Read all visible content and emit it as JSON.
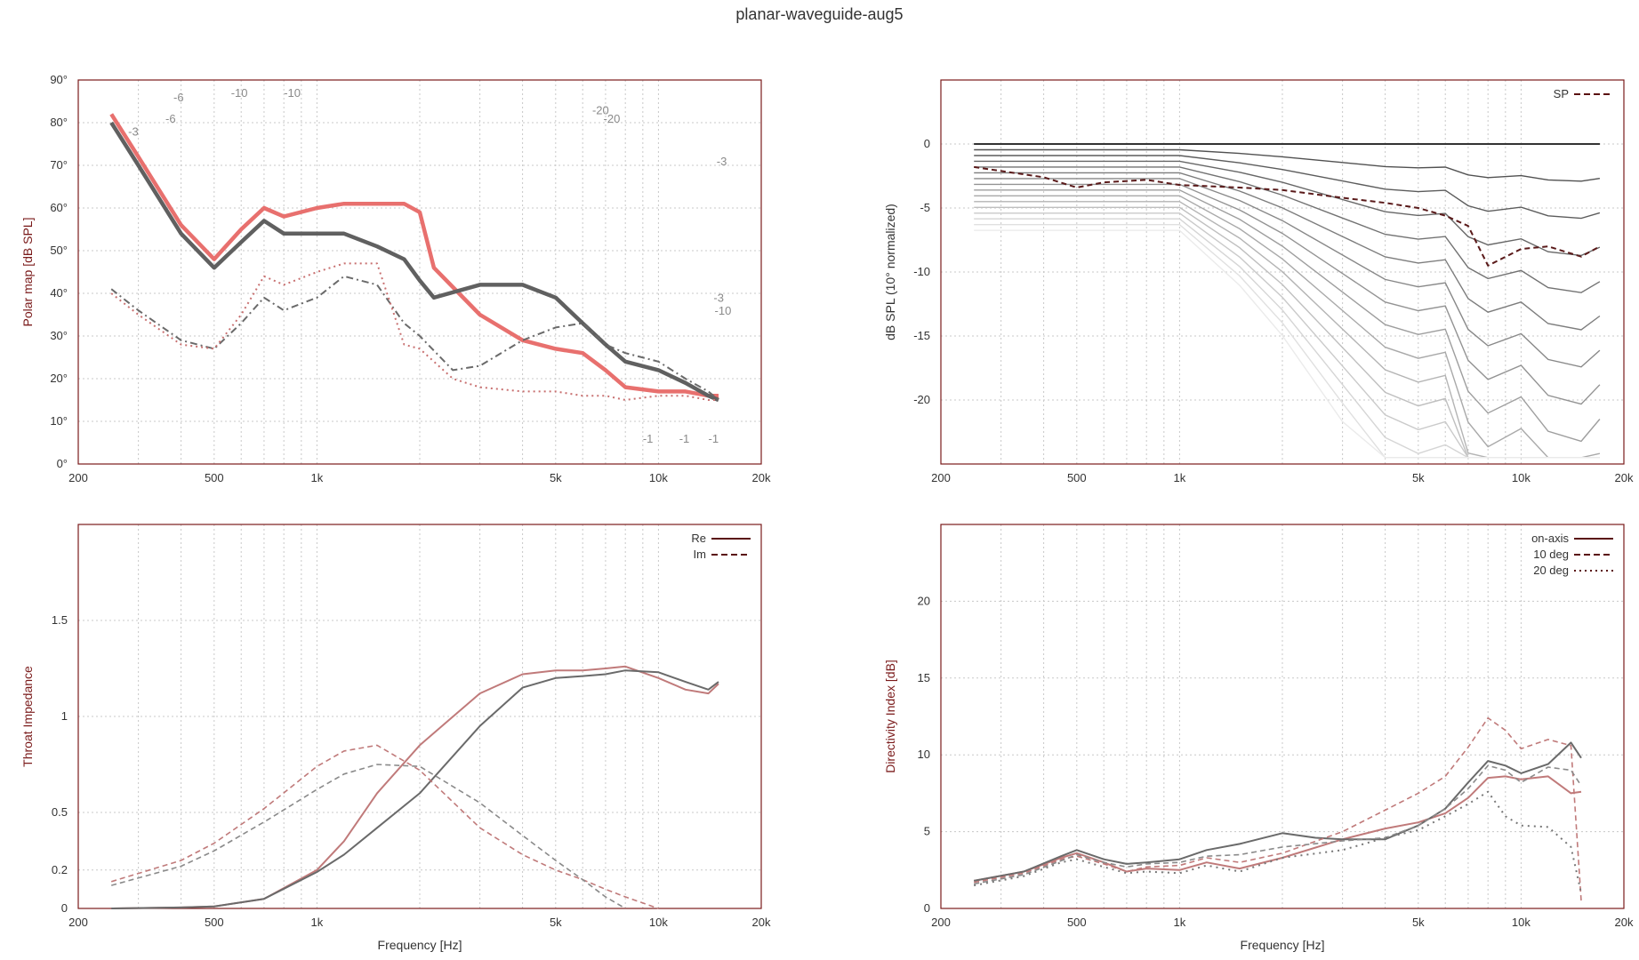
{
  "title": "planar-waveguide-aug5",
  "colors": {
    "frame": "#7a1a1a",
    "grid": "#c8c8c8",
    "red": "#e8706e",
    "redDark": "#b46c6c",
    "gray": "#5a5a5a",
    "legendLine": "#5a1010"
  },
  "chart_data": [
    {
      "type": "line",
      "name": "polar-map",
      "ylabel": "Polar map [dB SPL]",
      "xlabel": "",
      "xscale": "log",
      "xlim": [
        200,
        20000
      ],
      "ylim": [
        0,
        90
      ],
      "xticks": [
        200,
        500,
        1000,
        5000,
        10000,
        20000
      ],
      "xticklabels": [
        "200",
        "500",
        "1k",
        "5k",
        "10k",
        "20k"
      ],
      "yticks": [
        0,
        10,
        20,
        30,
        40,
        50,
        60,
        70,
        80,
        90
      ],
      "yticklabels": [
        "0°",
        "10°",
        "20°",
        "30°",
        "40°",
        "50°",
        "60°",
        "70°",
        "80°",
        "90°"
      ],
      "grid": true,
      "annotations": [
        "-3",
        "-6",
        "-6",
        "-10",
        "-10",
        "-20",
        "-20",
        "-3",
        "-3",
        "-10",
        "-1",
        "-1",
        "-1"
      ],
      "series": [
        {
          "style": "solid-thick-red",
          "x": [
            250,
            300,
            400,
            500,
            600,
            700,
            800,
            1000,
            1200,
            1500,
            1800,
            2000,
            2200,
            3000,
            4000,
            5000,
            6000,
            7000,
            8000,
            10000,
            12000,
            14000,
            15000
          ],
          "y": [
            82,
            72,
            56,
            48,
            55,
            60,
            58,
            60,
            61,
            61,
            61,
            59,
            46,
            35,
            29,
            27,
            26,
            22,
            18,
            17,
            17,
            16,
            16
          ]
        },
        {
          "style": "solid-thick-gray",
          "x": [
            250,
            300,
            400,
            500,
            600,
            700,
            800,
            1000,
            1200,
            1500,
            1800,
            2000,
            2200,
            3000,
            4000,
            5000,
            6000,
            7000,
            8000,
            10000,
            12000,
            14000,
            15000
          ],
          "y": [
            80,
            70,
            54,
            46,
            52,
            57,
            54,
            54,
            54,
            51,
            48,
            43,
            39,
            42,
            42,
            39,
            33,
            28,
            24,
            22,
            19,
            16,
            15
          ]
        },
        {
          "style": "dashdot-gray",
          "x": [
            250,
            300,
            400,
            500,
            600,
            700,
            800,
            1000,
            1200,
            1500,
            1800,
            2000,
            2500,
            3000,
            4000,
            5000,
            6000,
            7000,
            8000,
            10000,
            12000,
            14000,
            15000
          ],
          "y": [
            41,
            36,
            29,
            27,
            33,
            39,
            36,
            39,
            44,
            42,
            33,
            30,
            22,
            23,
            29,
            32,
            33,
            28,
            26,
            24,
            20,
            17,
            15
          ]
        },
        {
          "style": "dotted-red",
          "x": [
            250,
            300,
            400,
            500,
            600,
            700,
            800,
            1000,
            1200,
            1500,
            1800,
            2000,
            2500,
            3000,
            4000,
            5000,
            6000,
            7000,
            8000,
            10000,
            12000,
            14000,
            15000
          ],
          "y": [
            40,
            35,
            28,
            27,
            35,
            44,
            42,
            45,
            47,
            47,
            28,
            27,
            20,
            18,
            17,
            17,
            16,
            16,
            15,
            16,
            16,
            15,
            15
          ]
        }
      ]
    },
    {
      "type": "line",
      "name": "normalized-spl",
      "ylabel": "dB SPL (10° normalized)",
      "xlabel": "",
      "xscale": "log",
      "xlim": [
        200,
        20000
      ],
      "ylim": [
        -25,
        5
      ],
      "xticks": [
        200,
        500,
        1000,
        5000,
        10000,
        20000
      ],
      "xticklabels": [
        "200",
        "500",
        "1k",
        "5k",
        "10k",
        "20k"
      ],
      "yticks": [
        0,
        -5,
        -10,
        -15,
        -20
      ],
      "yticklabels": [
        "0",
        "-5",
        "-10",
        "-15",
        "-20"
      ],
      "grid": true,
      "legend": [
        {
          "label": "SP",
          "style": "dashed"
        }
      ],
      "legend_position": "top-right",
      "series": [
        {
          "name": "SP",
          "style": "dashed-dark",
          "x": [
            250,
            400,
            500,
            600,
            800,
            1000,
            1500,
            2000,
            3000,
            4000,
            5000,
            6000,
            7000,
            8000,
            10000,
            12000,
            15000,
            17000
          ],
          "y": [
            -1.8,
            -2.6,
            -3.4,
            -3.0,
            -2.8,
            -3.2,
            -3.4,
            -3.6,
            -4.2,
            -4.6,
            -5.0,
            -5.6,
            -6.4,
            -9.5,
            -8.2,
            -8.0,
            -8.8,
            -8.0
          ]
        }
      ]
    },
    {
      "type": "line",
      "name": "throat-impedance",
      "ylabel": "Throat Impedance",
      "xlabel": "Frequency [Hz]",
      "xscale": "log",
      "xlim": [
        200,
        20000
      ],
      "ylim": [
        0,
        2
      ],
      "xticks": [
        200,
        500,
        1000,
        5000,
        10000,
        20000
      ],
      "xticklabels": [
        "200",
        "500",
        "1k",
        "5k",
        "10k",
        "20k"
      ],
      "yticks": [
        0,
        0.2,
        0.5,
        1,
        1.5
      ],
      "yticklabels": [
        "0",
        "0.2",
        "0.5",
        "1",
        "1.5"
      ],
      "grid": true,
      "legend": [
        {
          "label": "Re",
          "style": "solid"
        },
        {
          "label": "Im",
          "style": "dashed"
        }
      ],
      "legend_position": "top-right",
      "series": [
        {
          "name": "Re",
          "style": "solid-red",
          "x": [
            250,
            400,
            500,
            700,
            1000,
            1200,
            1500,
            2000,
            3000,
            4000,
            5000,
            6000,
            7000,
            8000,
            10000,
            12000,
            14000,
            15000
          ],
          "y": [
            0,
            0.005,
            0.01,
            0.05,
            0.2,
            0.35,
            0.6,
            0.85,
            1.12,
            1.22,
            1.24,
            1.24,
            1.25,
            1.26,
            1.2,
            1.14,
            1.12,
            1.17
          ]
        },
        {
          "name": "Re",
          "style": "solid-gray",
          "x": [
            250,
            400,
            500,
            700,
            1000,
            1200,
            1500,
            2000,
            3000,
            4000,
            5000,
            6000,
            7000,
            8000,
            10000,
            12000,
            14000,
            15000
          ],
          "y": [
            0,
            0.005,
            0.01,
            0.05,
            0.19,
            0.28,
            0.42,
            0.6,
            0.95,
            1.15,
            1.2,
            1.21,
            1.22,
            1.24,
            1.23,
            1.18,
            1.14,
            1.18
          ]
        },
        {
          "name": "Im",
          "style": "dashed-red",
          "x": [
            250,
            400,
            500,
            700,
            1000,
            1200,
            1500,
            2000,
            3000,
            4000,
            5000,
            6000,
            7000,
            8000,
            10000
          ],
          "y": [
            0.14,
            0.25,
            0.34,
            0.52,
            0.74,
            0.82,
            0.85,
            0.72,
            0.42,
            0.28,
            0.2,
            0.15,
            0.1,
            0.06,
            0.0
          ]
        },
        {
          "name": "Im",
          "style": "dashed-gray",
          "x": [
            250,
            400,
            500,
            700,
            1000,
            1200,
            1500,
            2000,
            3000,
            4000,
            5000,
            6000,
            7000,
            8000
          ],
          "y": [
            0.12,
            0.22,
            0.3,
            0.45,
            0.62,
            0.7,
            0.75,
            0.74,
            0.55,
            0.38,
            0.25,
            0.15,
            0.06,
            0.0
          ]
        }
      ]
    },
    {
      "type": "line",
      "name": "directivity-index",
      "ylabel": "Directivity Index [dB]",
      "xlabel": "Frequency [Hz]",
      "xscale": "log",
      "xlim": [
        200,
        20000
      ],
      "ylim": [
        0,
        25
      ],
      "xticks": [
        200,
        500,
        1000,
        5000,
        10000,
        20000
      ],
      "xticklabels": [
        "200",
        "500",
        "1k",
        "5k",
        "10k",
        "20k"
      ],
      "yticks": [
        0,
        5,
        10,
        15,
        20
      ],
      "yticklabels": [
        "0",
        "5",
        "10",
        "15",
        "20"
      ],
      "grid": true,
      "legend": [
        {
          "label": "on-axis",
          "style": "solid"
        },
        {
          "label": "10 deg",
          "style": "dashed"
        },
        {
          "label": "20 deg",
          "style": "dotted"
        }
      ],
      "legend_position": "top-right",
      "series": [
        {
          "name": "on-axis",
          "style": "solid-red",
          "x": [
            250,
            350,
            450,
            500,
            600,
            700,
            800,
            1000,
            1200,
            1500,
            2000,
            3000,
            4000,
            5000,
            6000,
            7000,
            8000,
            9000,
            10000,
            12000,
            14000,
            15000
          ],
          "y": [
            1.8,
            2.4,
            3.3,
            3.6,
            3.0,
            2.4,
            2.6,
            2.5,
            3.0,
            2.6,
            3.3,
            4.5,
            5.2,
            5.6,
            6.2,
            7.2,
            8.5,
            8.6,
            8.4,
            8.6,
            7.5,
            7.6
          ]
        },
        {
          "name": "on-axis",
          "style": "solid-gray",
          "x": [
            250,
            350,
            450,
            500,
            600,
            700,
            800,
            1000,
            1200,
            1500,
            2000,
            2500,
            3000,
            4000,
            5000,
            6000,
            7000,
            8000,
            9000,
            10000,
            12000,
            14000,
            15000
          ],
          "y": [
            1.8,
            2.4,
            3.4,
            3.8,
            3.2,
            2.9,
            3.0,
            3.2,
            3.8,
            4.2,
            4.9,
            4.6,
            4.5,
            4.5,
            5.4,
            6.5,
            8.2,
            9.6,
            9.3,
            8.8,
            9.4,
            10.8,
            9.8
          ]
        },
        {
          "name": "10 deg",
          "style": "dashed-red",
          "x": [
            250,
            350,
            450,
            500,
            600,
            700,
            800,
            1000,
            1200,
            1500,
            2000,
            3000,
            4000,
            5000,
            6000,
            7000,
            8000,
            9000,
            10000,
            12000,
            14000,
            15000
          ],
          "y": [
            1.7,
            2.3,
            3.2,
            3.4,
            2.9,
            2.4,
            2.7,
            2.8,
            3.3,
            3.0,
            3.6,
            5.0,
            6.4,
            7.5,
            8.6,
            10.5,
            12.4,
            11.6,
            10.4,
            11.0,
            10.6,
            0.5
          ]
        },
        {
          "name": "10 deg",
          "style": "dashed-gray",
          "x": [
            250,
            350,
            450,
            500,
            600,
            700,
            800,
            1000,
            1200,
            1500,
            2000,
            3000,
            4000,
            5000,
            6000,
            7000,
            8000,
            9000,
            10000,
            12000,
            14000,
            15000
          ],
          "y": [
            1.6,
            2.2,
            3.1,
            3.5,
            3.0,
            2.7,
            2.9,
            3.0,
            3.4,
            3.5,
            4.0,
            4.4,
            4.6,
            5.4,
            6.5,
            7.8,
            9.3,
            9.0,
            8.2,
            9.2,
            9.0,
            8.0
          ]
        },
        {
          "name": "20 deg",
          "style": "dotted-gray",
          "x": [
            250,
            350,
            450,
            500,
            600,
            700,
            800,
            1000,
            1200,
            1500,
            2000,
            3000,
            4000,
            5000,
            6000,
            7000,
            8000,
            9000,
            10000,
            12000,
            14000,
            15000
          ],
          "y": [
            1.5,
            2.1,
            3.0,
            3.2,
            2.7,
            2.3,
            2.4,
            2.3,
            2.8,
            2.4,
            3.3,
            3.8,
            4.6,
            5.1,
            6.0,
            6.8,
            7.6,
            6.0,
            5.4,
            5.3,
            4.0,
            1.0
          ]
        }
      ]
    }
  ]
}
